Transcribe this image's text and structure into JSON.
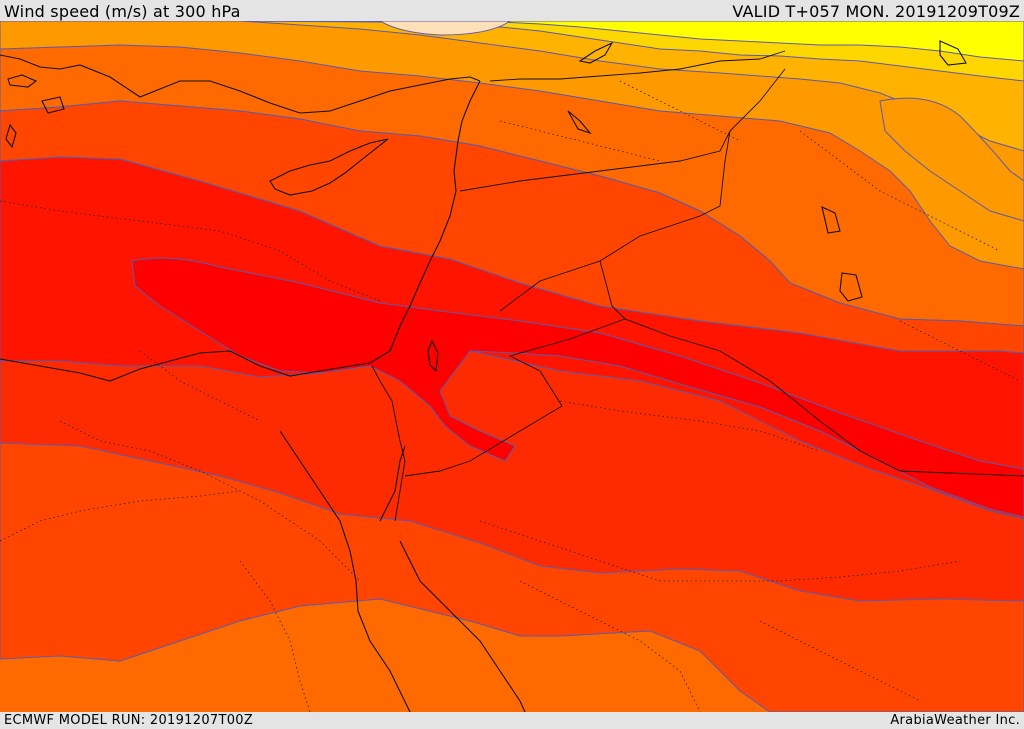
{
  "header": {
    "title": "Wind speed (m/s) at 300 hPa",
    "valid": "VALID T+057 MON. 20191209T09Z"
  },
  "footer": {
    "model_run": "ECMWF MODEL RUN: 20191207T00Z",
    "credit": "ArabiaWeather Inc."
  },
  "map": {
    "colors": {
      "peach": "#fde0b8",
      "yellow": "#ffff00",
      "gold": "#ffd700",
      "amber": "#ffb300",
      "orange": "#ff9900",
      "dark_orange": "#ff6a00",
      "red_orange": "#ff4500",
      "orange_red": "#ff2b00",
      "red": "#ff1400",
      "core_red": "#ff0000",
      "contour": "#5a5ab0",
      "border": "#111111"
    }
  }
}
